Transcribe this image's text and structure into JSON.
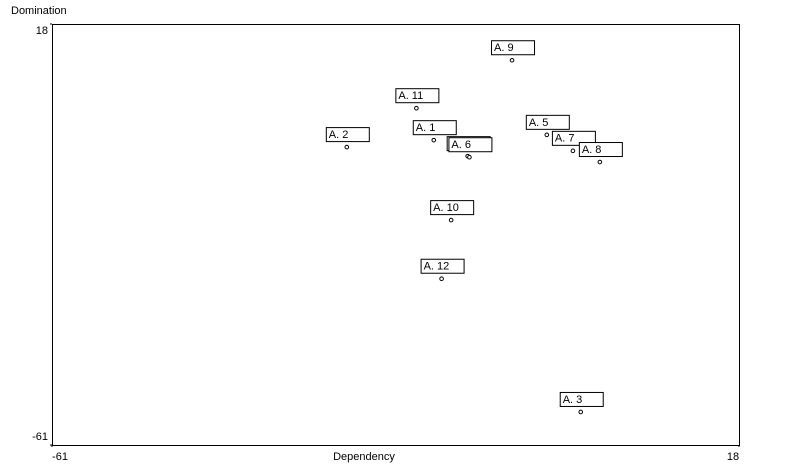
{
  "chart_data": {
    "type": "scatter",
    "x_label": "Dependency",
    "y_label": "Domination",
    "labels": [
      "A. 1",
      "A. 2",
      "A. 3",
      "A. 4",
      "A. 5",
      "A. 6",
      "A. 7",
      "A. 8",
      "A. 9",
      "A. 10",
      "A. 11",
      "A. 12"
    ],
    "x": [
      -17.1,
      -27.1,
      -0.2,
      -13.2,
      -4.1,
      -13.0,
      -1.1,
      2.0,
      -8.1,
      -15.1,
      -19.1,
      -16.2
    ],
    "y": [
      -3.8,
      -5.1,
      -54.8,
      -6.8,
      -2.8,
      -7.0,
      -5.8,
      -7.9,
      11.2,
      -18.8,
      2.2,
      -29.8
    ],
    "color": "#000000",
    "xlim": [
      -61,
      18
    ],
    "ylim": [
      -61,
      18
    ],
    "xticks": [
      -61,
      18
    ],
    "yticks": [
      -61,
      18
    ]
  }
}
